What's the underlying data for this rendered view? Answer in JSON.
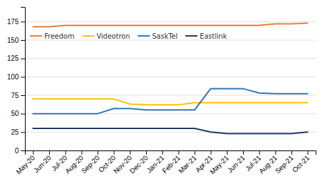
{
  "chart_data": {
    "type": "line",
    "categories": [
      "May-20",
      "Jun-20",
      "Jul-20",
      "Aug-20",
      "Sep-20",
      "Oct-20",
      "Nov-20",
      "Dec-20",
      "Jan-21",
      "Feb-21",
      "Mar-21",
      "Apr-21",
      "May-21",
      "Jun-21",
      "Jul-21",
      "Aug-21",
      "Sep-21",
      "Oct-21"
    ],
    "series": [
      {
        "name": "Freedom",
        "color": "#ED7D31",
        "values": [
          168,
          168,
          170,
          170,
          170,
          170,
          170,
          170,
          170,
          170,
          170,
          170,
          170,
          170,
          170,
          172,
          172,
          173
        ]
      },
      {
        "name": "Videotron",
        "color": "#FFC000",
        "values": [
          70,
          70,
          70,
          70,
          70,
          70,
          63,
          62,
          62,
          62,
          65,
          65,
          65,
          65,
          65,
          65,
          65,
          65
        ]
      },
      {
        "name": "SaskTel",
        "color": "#2E75B6",
        "values": [
          50,
          50,
          50,
          50,
          50,
          57,
          57,
          55,
          55,
          55,
          55,
          84,
          84,
          84,
          78,
          77,
          77,
          77
        ]
      },
      {
        "name": "Eastlink",
        "color": "#1F3864",
        "values": [
          30,
          30,
          30,
          30,
          30,
          30,
          30,
          30,
          30,
          30,
          30,
          25,
          23,
          23,
          23,
          23,
          23,
          25
        ]
      }
    ],
    "ylim": [
      0,
      195
    ],
    "yticks": [
      0,
      25,
      50,
      75,
      100,
      125,
      150,
      175
    ],
    "grid": true,
    "legend": "upper left"
  }
}
